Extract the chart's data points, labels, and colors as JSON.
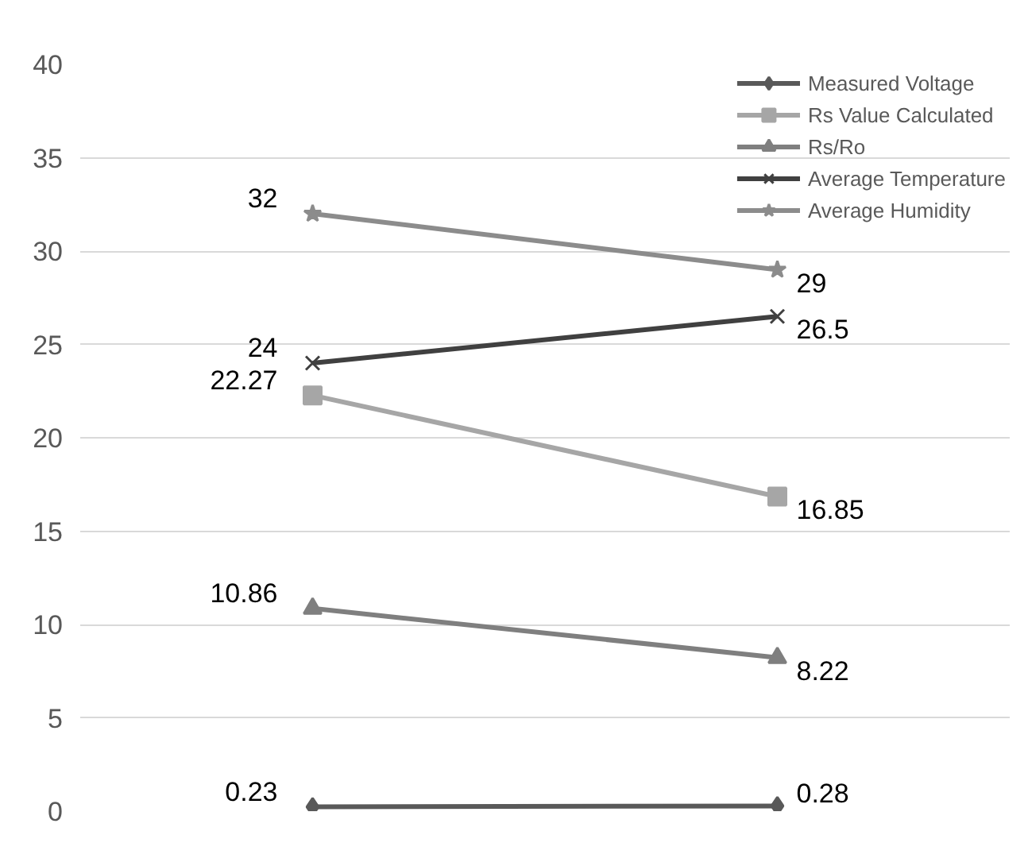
{
  "chart_data": {
    "type": "line",
    "categories": [
      null,
      null
    ],
    "series": [
      {
        "name": "Measured Voltage",
        "color": "#595959",
        "marker": "diamond",
        "values": [
          0.23,
          0.28
        ]
      },
      {
        "name": "Rs Value Calculated",
        "color": "#a6a6a6",
        "marker": "square",
        "values": [
          22.27,
          16.85
        ]
      },
      {
        "name": "Rs/Ro",
        "color": "#7f7f7f",
        "marker": "triangle",
        "values": [
          10.86,
          8.22
        ]
      },
      {
        "name": "Average Temperature",
        "color": "#404040",
        "marker": "cross",
        "values": [
          24,
          26.5
        ]
      },
      {
        "name": "Average Humidity",
        "color": "#8c8c8c",
        "marker": "star",
        "values": [
          32,
          29
        ]
      }
    ],
    "ylim": [
      0,
      40
    ],
    "yticks": [
      0,
      5,
      10,
      15,
      20,
      25,
      30,
      35,
      40
    ],
    "grid": "y",
    "legend": "top right",
    "data_labels": true
  }
}
